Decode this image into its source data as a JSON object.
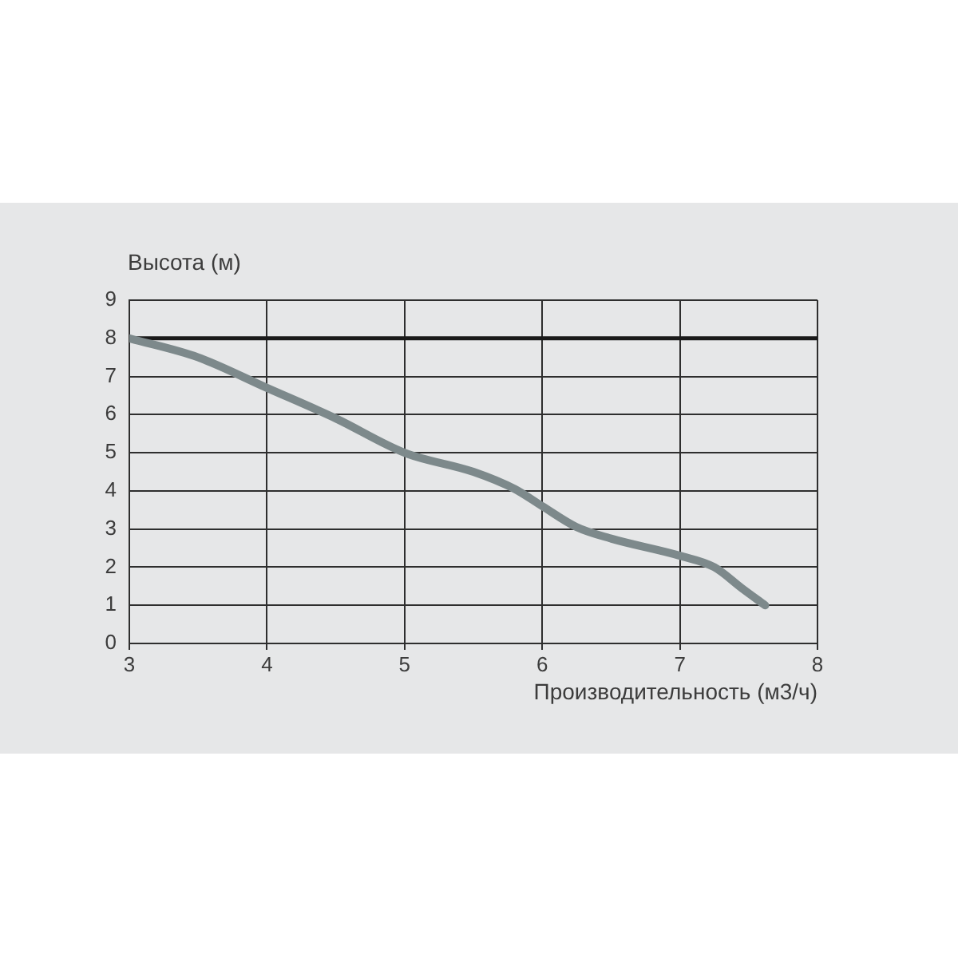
{
  "chart_data": {
    "type": "line",
    "xlabel": "Производительность (м3/ч)",
    "ylabel": "Высота (м)",
    "x": [
      3,
      3.5,
      4,
      4.5,
      5,
      5.5,
      5.8,
      6,
      6.25,
      6.5,
      7,
      7.25,
      7.45,
      7.62
    ],
    "values": [
      8.0,
      7.5,
      6.7,
      5.9,
      5.0,
      4.5,
      4.05,
      3.6,
      3.05,
      2.75,
      2.3,
      2.0,
      1.45,
      1.0
    ],
    "color": "#7d898b",
    "xlim": [
      3,
      8
    ],
    "xticks": [
      3,
      4,
      5,
      6,
      7,
      8
    ],
    "ylim": [
      0,
      9
    ],
    "yticks": [
      0,
      1,
      2,
      3,
      4,
      5,
      6,
      7,
      8,
      9
    ],
    "ref_lines": [
      {
        "axis": "y",
        "value": 8,
        "color": "#1a1a1a"
      }
    ],
    "grid": true,
    "legend": false,
    "marker": "none"
  }
}
